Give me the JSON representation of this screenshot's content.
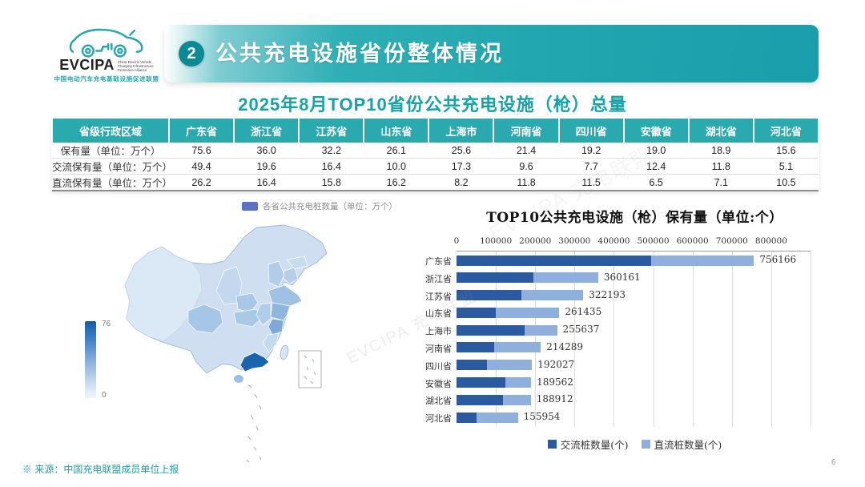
{
  "logo": {
    "name": "EVCIPA",
    "org_en": "China Electric Vehicle\nCharging Infrastructure\nPromotion Alliance",
    "org_cn": "中国电动汽车充电基础设施促进联盟"
  },
  "header": {
    "section_number": "2",
    "title": "公共充电设施省份整体情况",
    "accent_color": "#22a7b0"
  },
  "section_title": "2025年8月TOP10省份公共充电设施（枪）总量",
  "table": {
    "columns": [
      "省级行政区域",
      "广东省",
      "浙江省",
      "江苏省",
      "山东省",
      "上海市",
      "河南省",
      "四川省",
      "安徽省",
      "湖北省",
      "河北省"
    ],
    "rows": [
      {
        "label": "保有量（单位：万个）",
        "values": [
          "75.6",
          "36.0",
          "32.2",
          "26.1",
          "25.6",
          "21.4",
          "19.2",
          "19.0",
          "18.9",
          "15.6"
        ]
      },
      {
        "label": "交流保有量（单位：万个）",
        "values": [
          "49.4",
          "19.6",
          "16.4",
          "10.0",
          "17.3",
          "9.6",
          "7.7",
          "12.4",
          "11.8",
          "5.1"
        ]
      },
      {
        "label": "直流保有量（单位：万个）",
        "values": [
          "26.2",
          "16.4",
          "15.8",
          "16.2",
          "8.2",
          "11.8",
          "11.5",
          "6.5",
          "7.1",
          "10.5"
        ]
      }
    ]
  },
  "map": {
    "legend_label": "各省公共充电桩数量（单位：万个）",
    "legend_swatch_color": "#5a73c4",
    "scale_max": "76",
    "scale_min": "0"
  },
  "chart_data": [
    {
      "type": "bar",
      "orientation": "horizontal",
      "title": "TOP10公共充电设施（枪）保有量（单位:个）",
      "categories": [
        "广东省",
        "浙江省",
        "江苏省",
        "山东省",
        "上海市",
        "河南省",
        "四川省",
        "安徽省",
        "湖北省",
        "河北省"
      ],
      "series": [
        {
          "name": "交流桩数量(个)",
          "color": "#2b5aa0",
          "values": [
            494000,
            196000,
            164000,
            100000,
            173000,
            96000,
            77000,
            124000,
            118000,
            51000
          ]
        },
        {
          "name": "直流桩数量(个)",
          "color": "#8fafdd",
          "values": [
            262166,
            164161,
            158193,
            161435,
            82637,
            118289,
            115027,
            65562,
            70912,
            104954
          ]
        }
      ],
      "totals": [
        756166,
        360161,
        322193,
        261435,
        255637,
        214289,
        192027,
        189562,
        188912,
        155954
      ],
      "xlim": [
        0,
        900000
      ],
      "xticks": [
        0,
        100000,
        200000,
        300000,
        400000,
        500000,
        600000,
        700000,
        800000
      ],
      "grid": true,
      "legend_position": "bottom"
    },
    {
      "type": "heatmap",
      "title": "各省公共充电桩数量（单位：万个）",
      "colorbar": {
        "min": 0,
        "max": 76
      },
      "note": "中国分省地图着色，颜色越深数量越多；广东省最深",
      "values_by_province": {
        "广东省": 75.6,
        "浙江省": 36.0,
        "江苏省": 32.2,
        "山东省": 26.1,
        "上海市": 25.6,
        "河南省": 21.4,
        "四川省": 19.2,
        "安徽省": 19.0,
        "湖北省": 18.9,
        "河北省": 15.6
      }
    }
  ],
  "watermark": "EVCIPA 充电联盟",
  "footer": {
    "source_note": "※ 来源：中国充电联盟成员单位上报",
    "page_number": "6"
  }
}
